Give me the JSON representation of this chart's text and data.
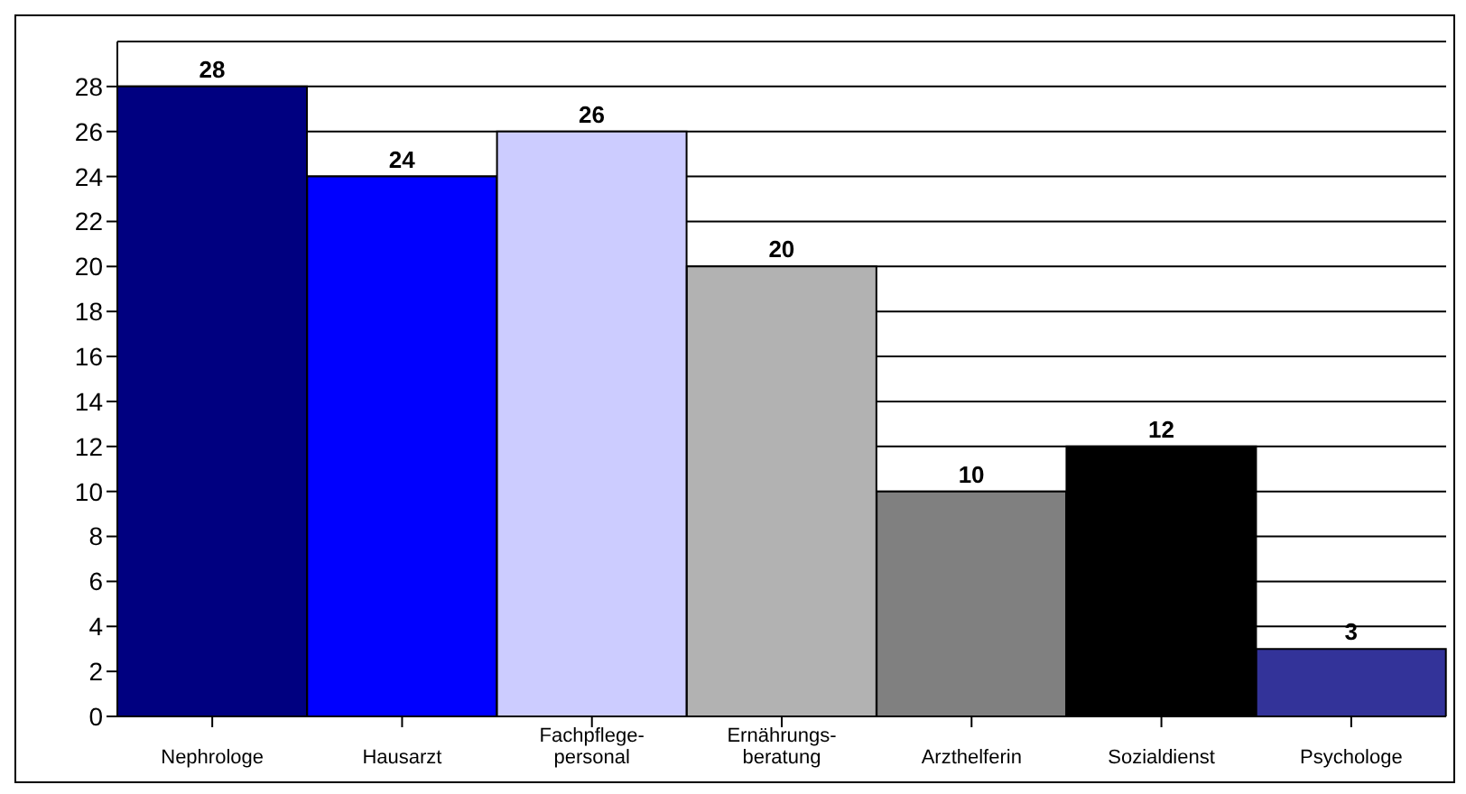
{
  "chart_data": {
    "type": "bar",
    "categories": [
      "Nephrologe",
      "Hausarzt",
      "Fachpflege-personal",
      "Ernährungs-beratung",
      "Arzthelferin",
      "Sozialdienst",
      "Psychologe"
    ],
    "values": [
      28,
      24,
      26,
      20,
      10,
      12,
      3
    ],
    "colors": [
      "#000080",
      "#0000ff",
      "#ccccff",
      "#b2b2b2",
      "#808080",
      "#000000",
      "#333399"
    ],
    "ylim": [
      0,
      30
    ],
    "yticks": [
      0,
      2,
      4,
      6,
      8,
      10,
      12,
      14,
      16,
      18,
      20,
      22,
      24,
      26,
      28
    ],
    "grid": "y",
    "data_labels": true,
    "legend": false
  }
}
